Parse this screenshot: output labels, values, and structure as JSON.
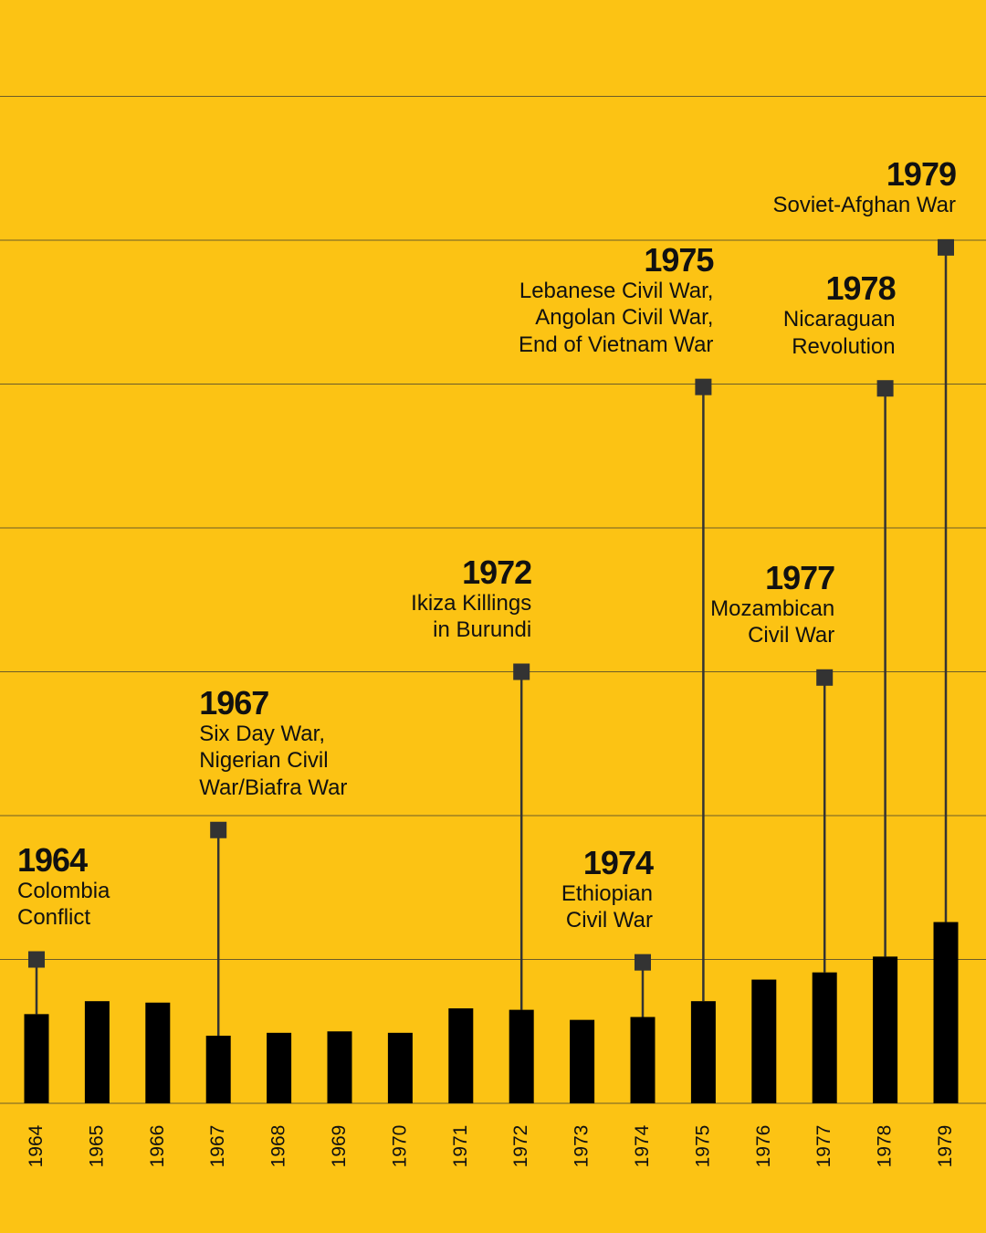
{
  "chart_data": {
    "type": "bar",
    "categories": [
      "1964",
      "1965",
      "1966",
      "1967",
      "1968",
      "1969",
      "1970",
      "1971",
      "1972",
      "1973",
      "1974",
      "1975",
      "1976",
      "1977",
      "1978",
      "1979"
    ],
    "values": [
      6.2,
      7.1,
      7.0,
      4.7,
      4.9,
      5.0,
      4.9,
      6.6,
      6.5,
      5.8,
      6.0,
      7.1,
      8.6,
      9.1,
      10.2,
      12.6
    ],
    "ylim": [
      0,
      70
    ],
    "grid": true,
    "gridline_values": [
      0,
      10,
      20,
      30,
      40,
      50,
      60,
      70
    ],
    "title": "",
    "xlabel": "",
    "ylabel": "",
    "annotations": [
      {
        "category": "1964",
        "marker_value": 10.0,
        "year": "1964",
        "text": "Colombia\nConflict",
        "align": "left"
      },
      {
        "category": "1967",
        "marker_value": 19.0,
        "year": "1967",
        "text": "Six Day War,\nNigerian Civil\nWar/Biafra War",
        "align": "left"
      },
      {
        "category": "1972",
        "marker_value": 30.0,
        "year": "1972",
        "text": "Ikiza Killings\nin Burundi",
        "align": "right"
      },
      {
        "category": "1974",
        "marker_value": 9.8,
        "year": "1974",
        "text": "Ethiopian\nCivil War",
        "align": "right"
      },
      {
        "category": "1975",
        "marker_value": 49.8,
        "year": "1975",
        "text": "Lebanese Civil War,\nAngolan Civil War,\nEnd of Vietnam War",
        "align": "right"
      },
      {
        "category": "1977",
        "marker_value": 29.6,
        "year": "1977",
        "text": "Mozambican\nCivil War",
        "align": "right"
      },
      {
        "category": "1978",
        "marker_value": 49.7,
        "year": "1978",
        "text": "Nicaraguan\nRevolution",
        "align": "right"
      },
      {
        "category": "1979",
        "marker_value": 59.5,
        "year": "1979",
        "text": "Soviet-Afghan War",
        "align": "right"
      }
    ]
  },
  "colors": {
    "background": "#FCC314",
    "bar": "#000000",
    "stem": "#333333",
    "marker": "#333333",
    "gridline": "#3d3a30",
    "text": "#111111"
  }
}
